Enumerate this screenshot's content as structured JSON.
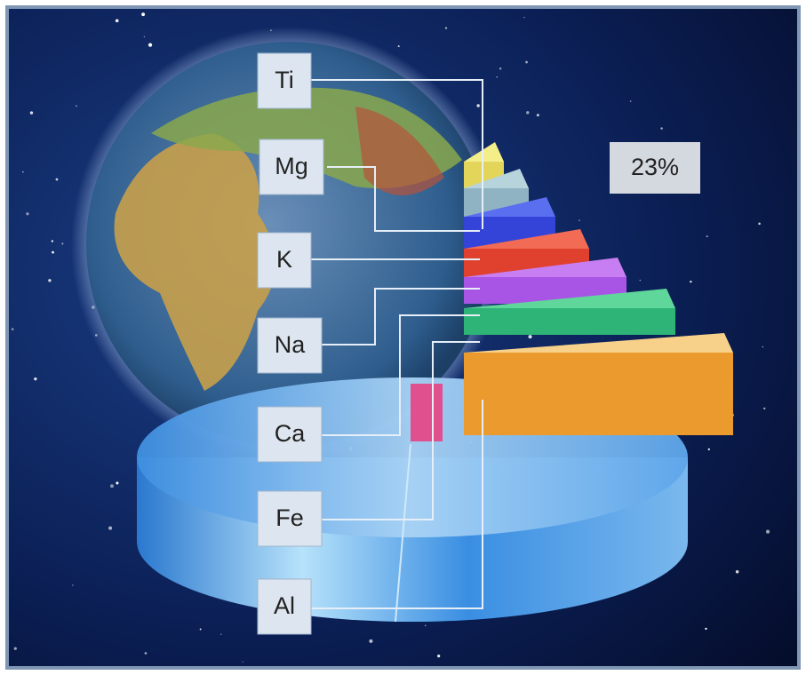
{
  "labels": [
    "Ti",
    "Mg",
    "K",
    "Na",
    "Ca",
    "Fe",
    "Al"
  ],
  "callout": "23%"
}
